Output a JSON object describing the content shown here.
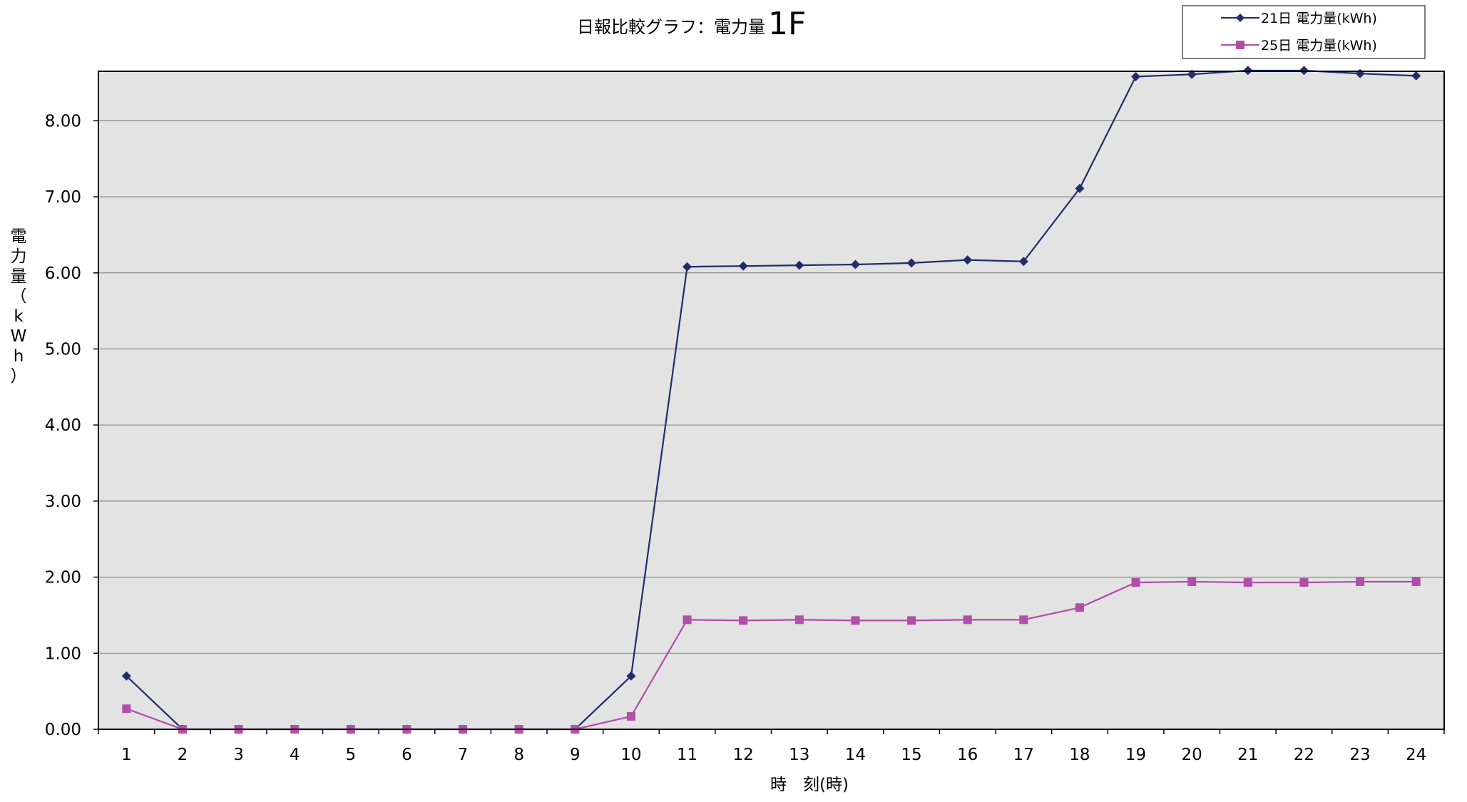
{
  "chart_data": {
    "type": "line",
    "title": "日報比較グラフ：電力量",
    "title_emphasis": "1F",
    "xlabel": "時　刻(時)",
    "ylabel": "電力量（kWh）",
    "categories": [
      "1",
      "2",
      "3",
      "4",
      "5",
      "6",
      "7",
      "8",
      "9",
      "10",
      "11",
      "12",
      "13",
      "14",
      "15",
      "16",
      "17",
      "18",
      "19",
      "20",
      "21",
      "22",
      "23",
      "24"
    ],
    "ylim": [
      0,
      8.65
    ],
    "yticks": [
      "0.00",
      "1.00",
      "2.00",
      "3.00",
      "4.00",
      "5.00",
      "6.00",
      "7.00",
      "8.00"
    ],
    "grid": true,
    "legend_position": "top-right",
    "plot_background": "#e3e3e3",
    "series": [
      {
        "name": "21日 電力量(kWh)",
        "color": "#1f2d6b",
        "marker": "diamond",
        "values": [
          0.7,
          0.0,
          0.0,
          0.0,
          0.0,
          0.0,
          0.0,
          0.0,
          0.0,
          0.7,
          6.08,
          6.09,
          6.1,
          6.11,
          6.13,
          6.17,
          6.15,
          7.11,
          8.58,
          8.61,
          8.66,
          8.66,
          8.62,
          8.59
        ]
      },
      {
        "name": "25日 電力量(kWh)",
        "color": "#b04ea8",
        "marker": "square",
        "values": [
          0.27,
          0.0,
          0.0,
          0.0,
          0.0,
          0.0,
          0.0,
          0.0,
          0.0,
          0.17,
          1.44,
          1.43,
          1.44,
          1.43,
          1.43,
          1.44,
          1.44,
          1.6,
          1.93,
          1.94,
          1.93,
          1.93,
          1.94,
          1.94
        ]
      }
    ]
  }
}
